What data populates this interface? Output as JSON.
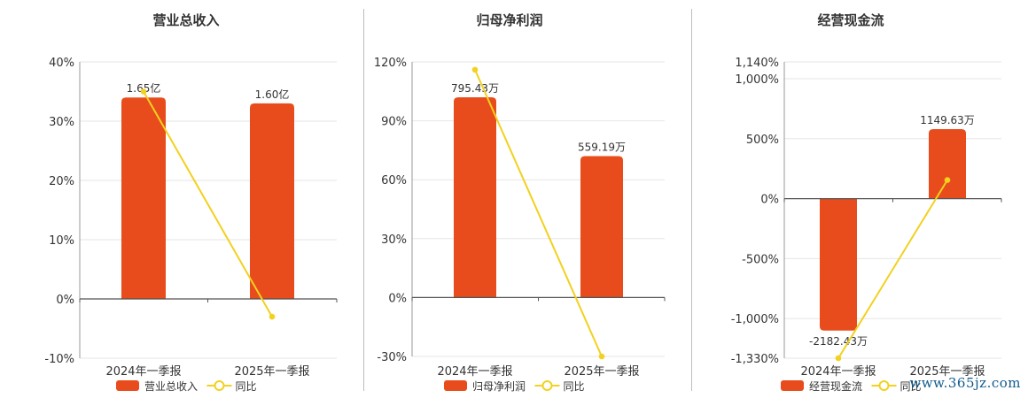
{
  "chart_data": [
    {
      "type": "bar",
      "title": "营业总收入",
      "categories": [
        "2024年一季报",
        "2025年一季报"
      ],
      "series": [
        {
          "name": "营业总收入",
          "type": "bar",
          "labels": [
            "1.65亿",
            "1.60亿"
          ],
          "values": [
            34,
            33
          ]
        },
        {
          "name": "同比",
          "type": "line",
          "values": [
            35,
            -3
          ]
        }
      ],
      "yticks": [
        "40%",
        "30%",
        "20%",
        "10%",
        "0%",
        "-10%"
      ],
      "ylim": [
        -10,
        40
      ],
      "colors": {
        "bar": "#e84c1c",
        "line": "#f2d11f"
      }
    },
    {
      "type": "bar",
      "title": "归母净利润",
      "categories": [
        "2024年一季报",
        "2025年一季报"
      ],
      "series": [
        {
          "name": "归母净利润",
          "type": "bar",
          "labels": [
            "795.43万",
            "559.19万"
          ],
          "values": [
            102,
            72
          ]
        },
        {
          "name": "同比",
          "type": "line",
          "values": [
            116,
            -30
          ]
        }
      ],
      "yticks": [
        "120%",
        "90%",
        "60%",
        "30%",
        "0%",
        "-30%"
      ],
      "ylim": [
        -30,
        120
      ],
      "colors": {
        "bar": "#e84c1c",
        "line": "#f2d11f"
      }
    },
    {
      "type": "bar",
      "title": "经营现金流",
      "categories": [
        "2024年一季报",
        "2025年一季报"
      ],
      "series": [
        {
          "name": "经营现金流",
          "type": "bar",
          "labels": [
            "-2182.43万",
            "1149.63万"
          ],
          "values": [
            -1100,
            580
          ]
        },
        {
          "name": "同比",
          "type": "line",
          "values": [
            -1330,
            155
          ]
        }
      ],
      "yticks": [
        "1,140%",
        "1,000%",
        "500%",
        "0%",
        "-500%",
        "-1,000%",
        "-1,330%"
      ],
      "ytick_values": [
        1140,
        1000,
        500,
        0,
        -500,
        -1000,
        -1330
      ],
      "ylim": [
        -1330,
        1140
      ],
      "colors": {
        "bar": "#e84c1c",
        "line": "#f2d11f"
      }
    }
  ],
  "watermark": "www.365jz.com"
}
